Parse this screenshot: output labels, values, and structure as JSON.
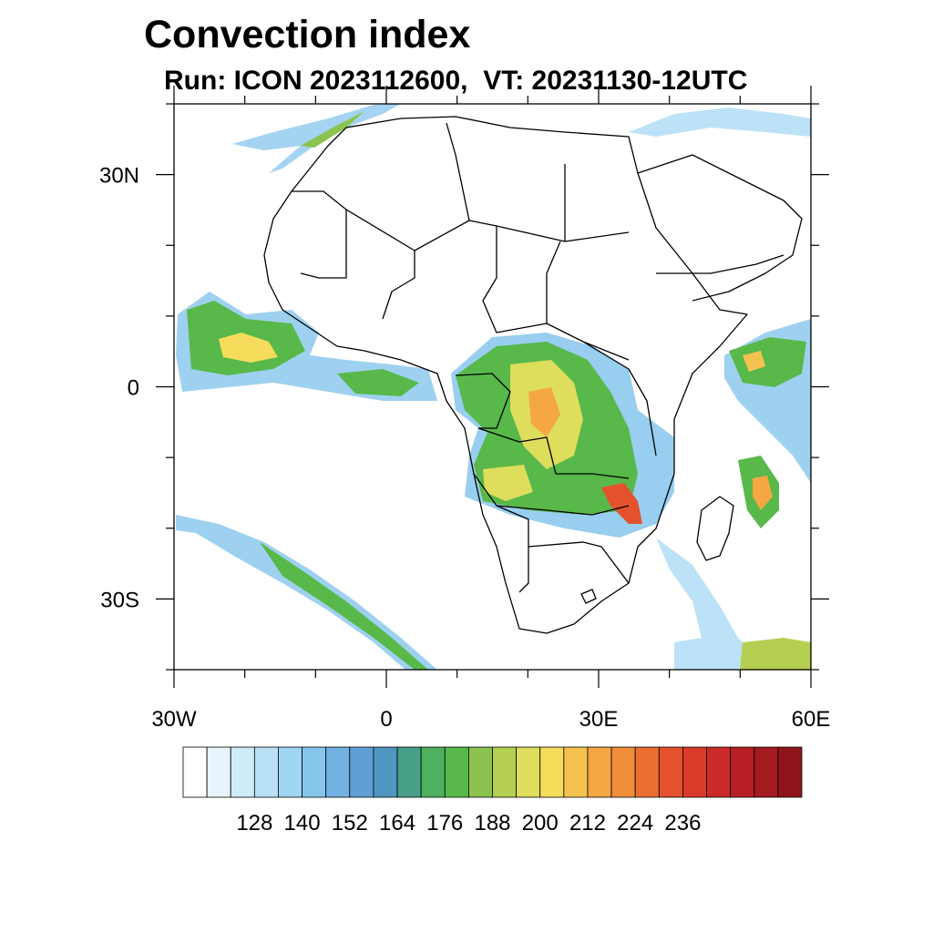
{
  "title": "Convection index",
  "subtitle": {
    "run": "Run: ICON 2023112600,",
    "vt": "VT: 20231130-12UTC"
  },
  "map": {
    "lon_range": [
      -30,
      60
    ],
    "lat_range": [
      -40,
      40
    ],
    "projection": "cylindrical equidistant",
    "content": "convection index shading over Africa with country borders and coastlines"
  },
  "axes": {
    "x_ticks": [
      {
        "value": -30,
        "label": "30W"
      },
      {
        "value": 0,
        "label": "0"
      },
      {
        "value": 30,
        "label": "30E"
      },
      {
        "value": 60,
        "label": "60E"
      }
    ],
    "y_ticks": [
      {
        "value": 30,
        "label": "30N"
      },
      {
        "value": 0,
        "label": "0"
      },
      {
        "value": -30,
        "label": "30S"
      }
    ],
    "x_minor_step": 10,
    "y_minor_step": 10
  },
  "colorbar": {
    "labels": [
      "128",
      "140",
      "152",
      "164",
      "176",
      "188",
      "200",
      "212",
      "224",
      "236"
    ],
    "colors": [
      "#ffffff",
      "#e8f4fb",
      "#d0ebf8",
      "#b9e1f6",
      "#9fd6f3",
      "#86c6ec",
      "#72b2e2",
      "#5f9fd6",
      "#4f96c0",
      "#47a087",
      "#4fb160",
      "#58b84a",
      "#8cc34f",
      "#b5cf52",
      "#dedd5c",
      "#f6dc5b",
      "#f6c24f",
      "#f5a743",
      "#f18d38",
      "#ec6f31",
      "#e4522d",
      "#da3a2a",
      "#cc2a28",
      "#b81f24",
      "#a31b1f",
      "#8e161a"
    ]
  },
  "colors": {
    "frame": "#000000",
    "border": "#000000"
  }
}
